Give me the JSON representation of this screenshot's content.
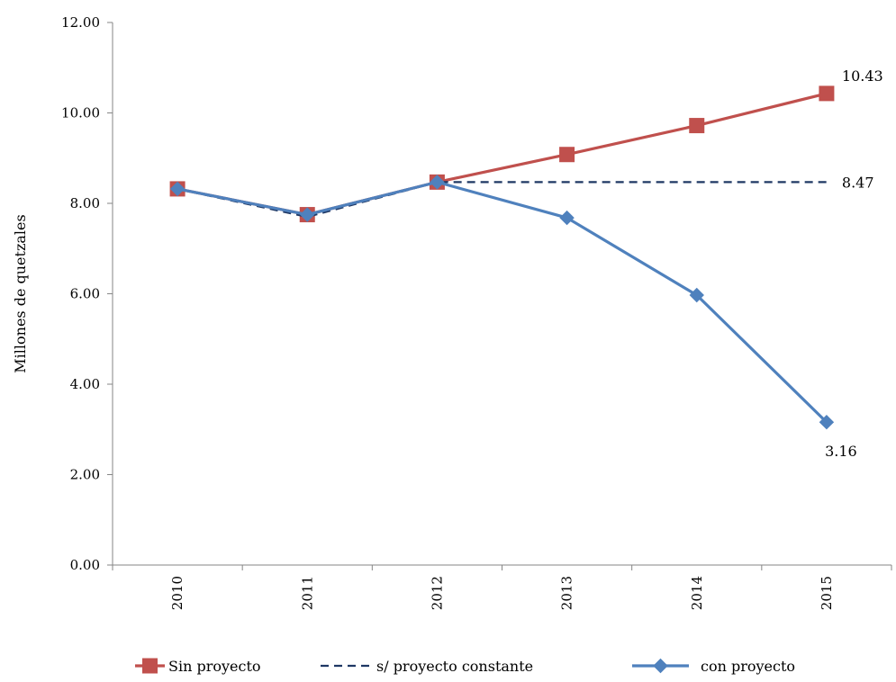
{
  "chart_data": {
    "type": "line",
    "title": "",
    "xlabel": "",
    "ylabel": "Millones de quetzales",
    "categories": [
      "2010",
      "2011",
      "2012",
      "2013",
      "2014",
      "2015"
    ],
    "ylim": [
      0,
      12
    ],
    "yticks": [
      "0.00",
      "2.00",
      "4.00",
      "6.00",
      "8.00",
      "10.00",
      "12.00"
    ],
    "grid": false,
    "legend_position": "bottom",
    "series": [
      {
        "name": "Sin proyecto",
        "values": [
          8.32,
          7.75,
          8.47,
          9.08,
          9.72,
          10.43
        ],
        "color": "#c0504d",
        "style": "solid",
        "marker": "square"
      },
      {
        "name": "s/ proyecto constante",
        "values": [
          8.32,
          7.7,
          8.47,
          8.47,
          8.47,
          8.47
        ],
        "color": "#1f3864",
        "style": "dashed",
        "marker": "none"
      },
      {
        "name": "con proyecto",
        "values": [
          8.32,
          7.75,
          8.47,
          7.68,
          5.97,
          3.16
        ],
        "color": "#4f81bd",
        "style": "solid",
        "marker": "diamond"
      }
    ],
    "annotations": [
      {
        "series": 0,
        "index": 5,
        "text": "10.43",
        "position": "above-right"
      },
      {
        "series": 1,
        "index": 5,
        "text": "8.47",
        "position": "right"
      },
      {
        "series": 2,
        "index": 5,
        "text": "3.16",
        "position": "below"
      }
    ]
  }
}
